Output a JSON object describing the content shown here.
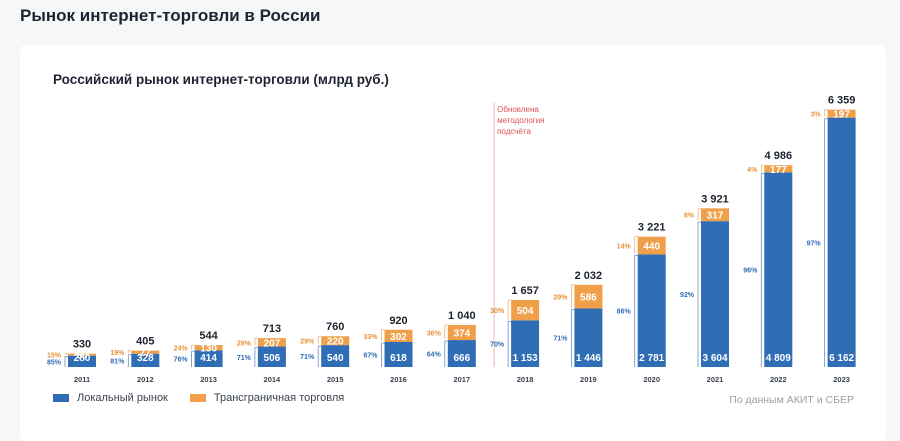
{
  "page": {
    "title": "Рынок интернет-торговли в России"
  },
  "chart_data": {
    "type": "bar",
    "stacked": true,
    "title": "Российский рынок интернет-торговли (млрд руб.)",
    "categories": [
      "2011",
      "2012",
      "2013",
      "2014",
      "2015",
      "2016",
      "2017",
      "2018",
      "2019",
      "2020",
      "2021",
      "2022",
      "2023"
    ],
    "series": [
      {
        "name": "Локальный рынок",
        "color": "#2f6db5",
        "values": [
          280,
          328,
          414,
          506,
          540,
          618,
          666,
          1153,
          1446,
          2781,
          3604,
          4809,
          6162
        ],
        "labels": [
          "280",
          "328",
          "414",
          "506",
          "540",
          "618",
          "666",
          "1 153",
          "1 446",
          "2 781",
          "3 604",
          "4 809",
          "6 162"
        ],
        "shares": [
          "85%",
          "81%",
          "76%",
          "71%",
          "71%",
          "67%",
          "64%",
          "70%",
          "71%",
          "86%",
          "92%",
          "96%",
          "97%"
        ]
      },
      {
        "name": "Трансграничная торговля",
        "color": "#f0a04b",
        "values": [
          50,
          77,
          130,
          207,
          220,
          302,
          374,
          504,
          586,
          440,
          317,
          177,
          197
        ],
        "labels": [
          "50",
          "77",
          "130",
          "207",
          "220",
          "302",
          "374",
          "504",
          "586",
          "440",
          "317",
          "177",
          "197"
        ],
        "shares": [
          "15%",
          "19%",
          "24%",
          "29%",
          "29%",
          "33%",
          "36%",
          "30%",
          "29%",
          "14%",
          "8%",
          "4%",
          "3%"
        ]
      }
    ],
    "totals": [
      "330",
      "405",
      "544",
      "713",
      "760",
      "920",
      "1 040",
      "1 657",
      "2 032",
      "3 221",
      "3 921",
      "4 986",
      "6 359"
    ],
    "annotation": {
      "lines": [
        "Обновлена",
        "методология",
        "подсчёта"
      ],
      "color": "#e15050"
    },
    "ylim": [
      0,
      6400
    ],
    "legend_position": "bottom-left"
  },
  "source": "По данным АКИТ и СБЕР"
}
